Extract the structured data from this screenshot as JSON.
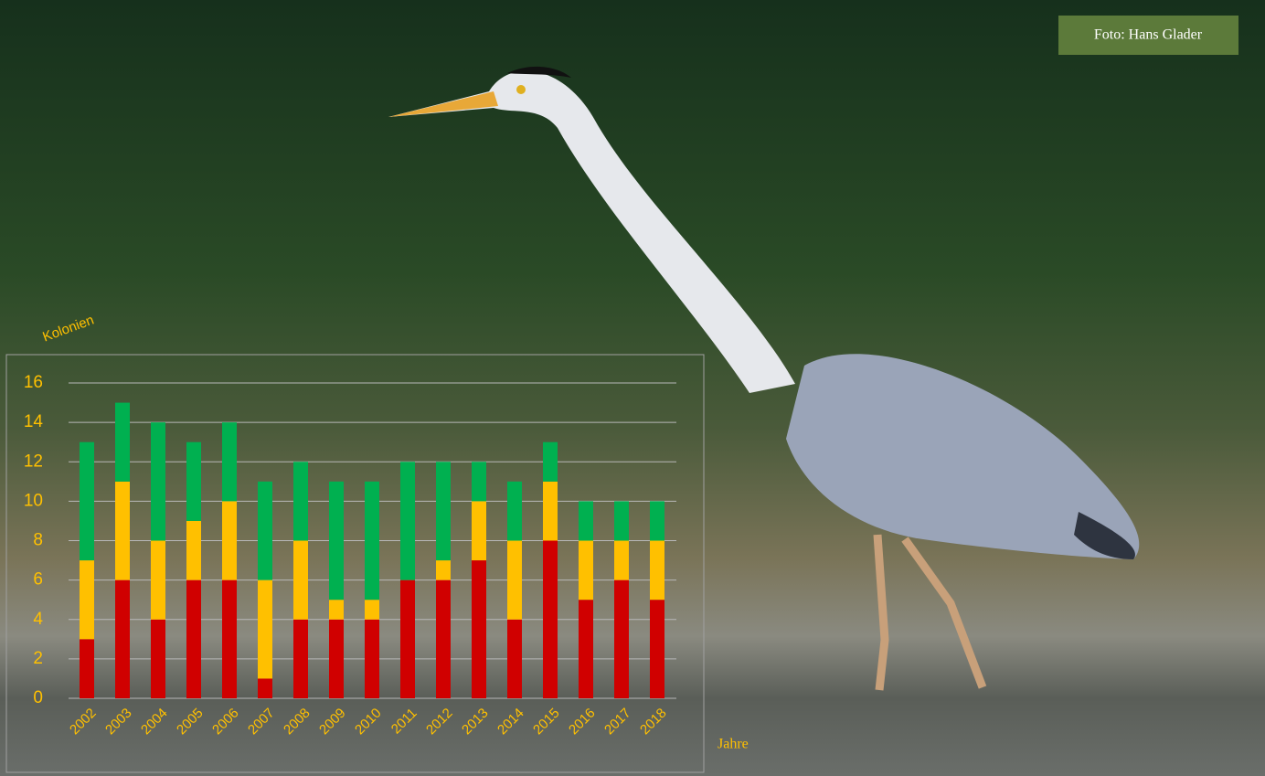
{
  "photo_credit": "Foto: Hans Glader",
  "chart_data": {
    "type": "stacked_bar",
    "y_label": "Kolonien",
    "x_label": "Jahre",
    "categories": [
      "2002",
      "2003",
      "2004",
      "2005",
      "2006",
      "2007",
      "2008",
      "2009",
      "2010",
      "2011",
      "2012",
      "2013",
      "2014",
      "2015",
      "2016",
      "2017",
      "2018"
    ],
    "series": [
      {
        "color": "#d00000",
        "values": [
          3,
          6,
          4,
          6,
          6,
          1,
          4,
          4,
          4,
          6,
          6,
          7,
          4,
          8,
          5,
          6,
          5
        ]
      },
      {
        "color": "#ffc000",
        "values": [
          4,
          5,
          4,
          3,
          4,
          5,
          4,
          1,
          1,
          0,
          1,
          3,
          4,
          3,
          3,
          2,
          3
        ]
      },
      {
        "color": "#00b050",
        "values": [
          6,
          4,
          6,
          4,
          4,
          5,
          4,
          6,
          6,
          6,
          5,
          2,
          3,
          2,
          2,
          2,
          2
        ]
      }
    ],
    "ylim": [
      0,
      16
    ],
    "yticks": [
      0,
      2,
      4,
      6,
      8,
      10,
      12,
      14,
      16
    ],
    "grid": true
  }
}
